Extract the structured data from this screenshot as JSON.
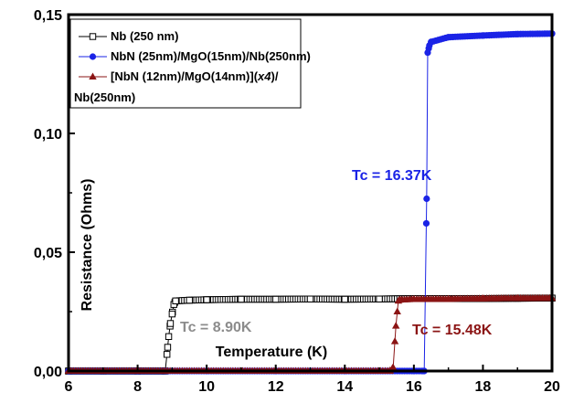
{
  "chart_data": {
    "type": "line",
    "xlabel": "Temperature (K)",
    "ylabel": "Resistance (Ohms)",
    "xlim": [
      6,
      20
    ],
    "ylim": [
      0,
      0.15
    ],
    "x_ticks": [
      6,
      8,
      10,
      12,
      14,
      16,
      18,
      20
    ],
    "x_tick_labels": [
      "6",
      "8",
      "10",
      "12",
      "14",
      "16",
      "18",
      "20"
    ],
    "y_ticks": [
      0,
      0.05,
      0.1,
      0.15
    ],
    "y_tick_labels": [
      "0,00",
      "0,05",
      "0,10",
      "0,15"
    ],
    "grid": false,
    "legend_position": "top-left",
    "series": [
      {
        "name": "Nb (250 nm)",
        "color": "#000000",
        "marker": "open-square",
        "x": [
          6.0,
          7.0,
          8.0,
          8.8,
          8.85,
          8.9,
          8.95,
          9.0,
          9.05,
          9.1,
          9.5,
          10.0,
          11.0,
          12.0,
          13.0,
          14.0,
          15.0,
          16.0,
          17.0,
          18.0,
          19.0,
          20.0
        ],
        "y": [
          0.0,
          0.0,
          0.0,
          0.0,
          0.007,
          0.0145,
          0.02,
          0.024,
          0.028,
          0.0295,
          0.0298,
          0.03,
          0.0302,
          0.0302,
          0.0303,
          0.0302,
          0.0303,
          0.0305,
          0.0305,
          0.0305,
          0.0306,
          0.0307
        ]
      },
      {
        "name": "NbN (25nm)/MgO(15nm)/Nb(250nm)",
        "color": "#1a23e6",
        "marker": "filled-circle",
        "x": [
          6.0,
          8.0,
          10.0,
          12.0,
          14.0,
          16.0,
          16.25,
          16.3,
          16.37,
          16.4,
          16.45,
          16.5,
          17.0,
          18.0,
          19.0,
          20.0
        ],
        "y": [
          0.0,
          0.0,
          0.0,
          0.0,
          0.0,
          0.0,
          0.0,
          0.0,
          0.0725,
          0.134,
          0.137,
          0.1385,
          0.1405,
          0.1412,
          0.1418,
          0.142
        ]
      },
      {
        "name": "[NbN (12nm)/MgO(14nm)](x4)/Nb(250nm)",
        "color": "#8b1414",
        "marker": "filled-triangle",
        "x": [
          6.0,
          8.0,
          10.0,
          12.0,
          14.0,
          15.3,
          15.4,
          15.48,
          15.55,
          15.6,
          16.0,
          17.0,
          18.0,
          19.0,
          20.0
        ],
        "y": [
          0.0,
          0.0,
          0.0,
          0.0,
          0.0,
          0.0,
          0.0015,
          0.019,
          0.0295,
          0.03,
          0.0302,
          0.0303,
          0.0305,
          0.0306,
          0.0307
        ]
      }
    ],
    "legend": [
      {
        "line1": "Nb (250 nm)"
      },
      {
        "line1": "NbN (25nm)/MgO(15nm)/Nb(250nm)"
      },
      {
        "line1_pre": "[NbN (12nm)/MgO(14nm)](",
        "line1_ital": "x4",
        "line1_post": ")/",
        "line2": "Nb(250nm)"
      }
    ],
    "annotations": [
      {
        "text": "Tc = 16.37K",
        "color": "#1a23e6",
        "x": 16.37,
        "y": 0.0725
      },
      {
        "text": "Tc = 8.90K",
        "color": "#8c8c8c",
        "x": 8.9,
        "y": 0.0145
      },
      {
        "text": "Tc = 15.48K",
        "color": "#8b1414",
        "x": 15.48,
        "y": 0.019
      }
    ]
  }
}
